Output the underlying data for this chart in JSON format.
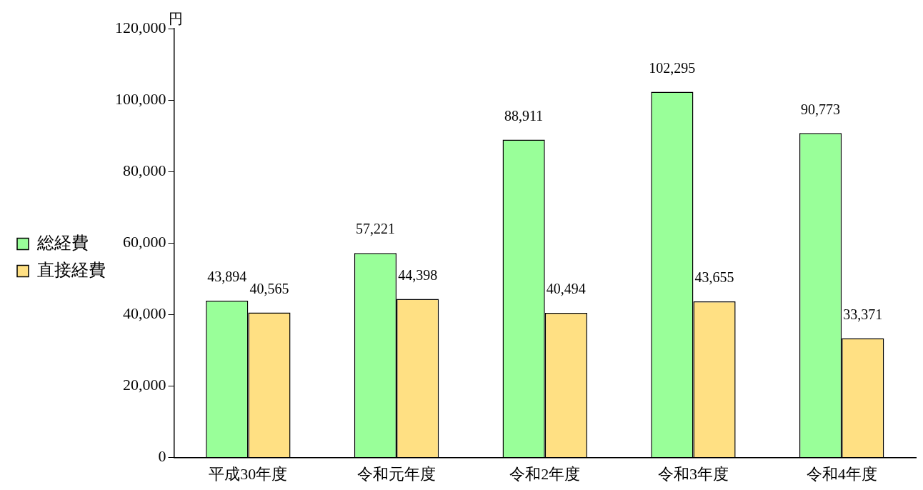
{
  "chart_data": {
    "type": "bar",
    "ylabel": "円",
    "categories": [
      "平成30年度",
      "令和元年度",
      "令和2年度",
      "令和3年度",
      "令和4年度"
    ],
    "series": [
      {
        "name": "総経費",
        "color": "#99ff99",
        "values": [
          43894,
          57221,
          88911,
          102295,
          90773
        ],
        "value_labels": [
          "43,894",
          "57,221",
          "88,911",
          "102,295",
          "90,773"
        ]
      },
      {
        "name": "直接経費",
        "color": "#ffe083",
        "values": [
          40565,
          44398,
          40494,
          43655,
          33371
        ],
        "value_labels": [
          "40,565",
          "44,398",
          "40,494",
          "43,655",
          "33,371"
        ]
      }
    ],
    "ylim": [
      0,
      120000
    ],
    "yticks": [
      0,
      {
        "value": 20000,
        "label": "20,000"
      },
      {
        "value": 40000,
        "label": "40,000"
      },
      {
        "value": 60000,
        "label": "60,000"
      },
      {
        "value": 80000,
        "label": "80,000"
      },
      {
        "value": 100000,
        "label": "100,000"
      },
      {
        "value": 120000,
        "label": "120,000"
      }
    ],
    "grid": false,
    "legend": "left"
  }
}
